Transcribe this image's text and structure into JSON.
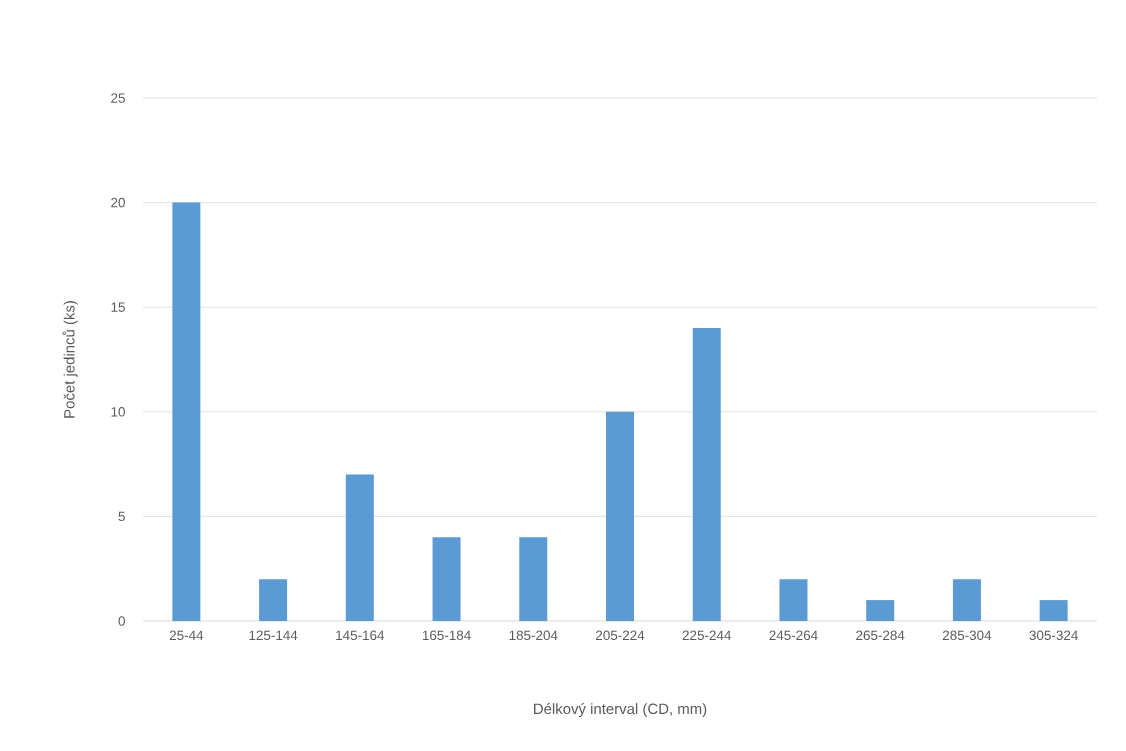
{
  "chart_data": {
    "type": "bar",
    "xlabel": "Délkový interval (CD, mm)",
    "ylabel": "Počet jedinců (ks)",
    "categories": [
      "25-44",
      "125-144",
      "145-164",
      "165-184",
      "185-204",
      "205-224",
      "225-244",
      "245-264",
      "265-284",
      "285-304",
      "305-324"
    ],
    "values": [
      20,
      2,
      7,
      4,
      4,
      10,
      14,
      2,
      1,
      2,
      1
    ],
    "color": "#5b9bd5",
    "ylim": [
      0,
      25
    ],
    "yticks": [
      0,
      5,
      10,
      15,
      20,
      25
    ],
    "grid": "y"
  }
}
